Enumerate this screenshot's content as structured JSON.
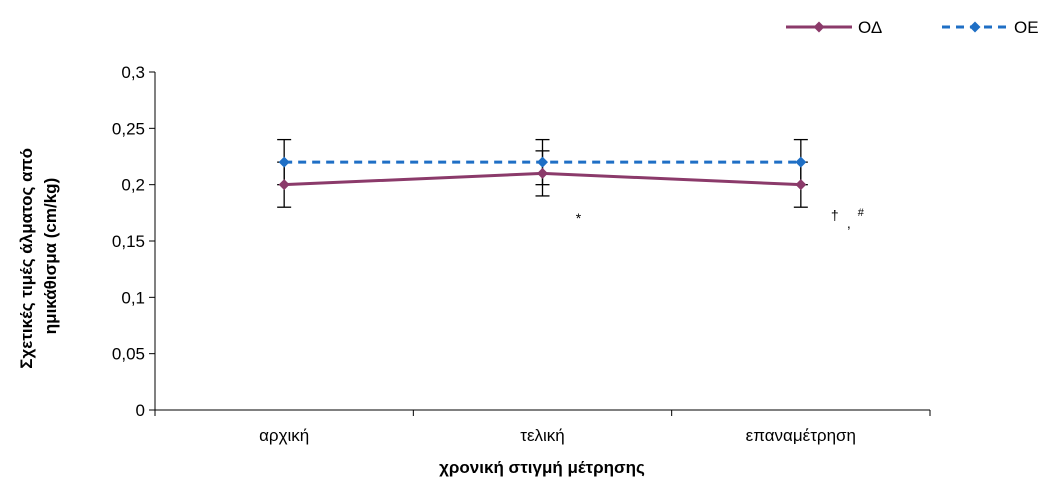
{
  "chart_data": {
    "type": "line",
    "categories": [
      "αρχική",
      "τελική",
      "επαναμέτρηση"
    ],
    "xlabel": "χρονική στιγμή μέτρησης",
    "ylabel_lines": [
      "Σχετικές τιμές άλματος από",
      "ημικάθισμα (cm/kg)"
    ],
    "ylim": [
      0,
      0.3
    ],
    "yticks": [
      "0",
      "0,05",
      "0,1",
      "0,15",
      "0,2",
      "0,25",
      "0,3"
    ],
    "ytick_values": [
      0,
      0.05,
      0.1,
      0.15,
      0.2,
      0.25,
      0.3
    ],
    "grid": false,
    "legend_position": "top-right",
    "series": [
      {
        "name": "ΟΔ",
        "values": [
          0.2,
          0.21,
          0.2
        ],
        "error": [
          0.02,
          0.02,
          0.02
        ],
        "color": "#8B3A6A",
        "style": "solid",
        "marker": "diamond"
      },
      {
        "name": "ΟΕ",
        "values": [
          0.22,
          0.22,
          0.22
        ],
        "error": [
          0.02,
          0.02,
          0.02
        ],
        "color": "#1F6FC5",
        "style": "dashed",
        "marker": "diamond"
      }
    ],
    "annotations": [
      {
        "category_index": 1,
        "text": "*"
      },
      {
        "category_index": 2,
        "text": "†",
        "extra": ",",
        "sup": "#"
      }
    ]
  }
}
